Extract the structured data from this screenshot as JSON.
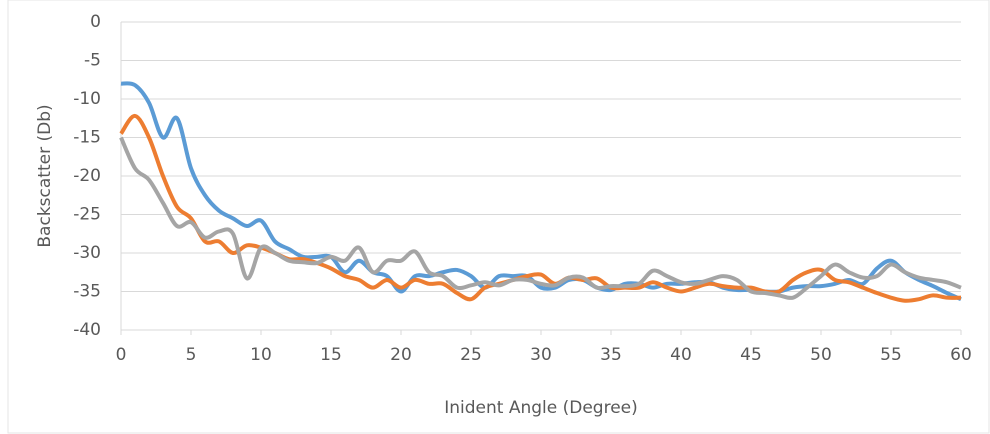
{
  "chart_data": {
    "type": "line",
    "xlabel": "Inident Angle (Degree)",
    "ylabel": "Backscatter (Db)",
    "x": [
      0,
      1,
      2,
      3,
      4,
      5,
      6,
      7,
      8,
      9,
      10,
      11,
      12,
      13,
      14,
      15,
      16,
      17,
      18,
      19,
      20,
      21,
      22,
      23,
      24,
      25,
      26,
      27,
      28,
      29,
      30,
      31,
      32,
      33,
      34,
      35,
      36,
      37,
      38,
      39,
      40,
      41,
      42,
      43,
      44,
      45,
      46,
      47,
      48,
      49,
      50,
      51,
      52,
      53,
      54,
      55,
      56,
      57,
      58,
      59,
      60
    ],
    "series": [
      {
        "color": "#5b9bd5",
        "values": [
          -8,
          -8.2,
          -10.5,
          -15,
          -12.5,
          -19,
          -22.5,
          -24.5,
          -25.5,
          -26.5,
          -25.8,
          -28.5,
          -29.5,
          -30.5,
          -30.5,
          -30.5,
          -32.5,
          -31,
          -32.5,
          -33,
          -35,
          -33,
          -33,
          -32.5,
          -32.2,
          -33,
          -34.5,
          -33,
          -33,
          -33,
          -34.5,
          -34.5,
          -33.5,
          -33.5,
          -34.5,
          -34.8,
          -34,
          -34,
          -34.5,
          -34,
          -34,
          -33.8,
          -33.8,
          -34.5,
          -34.8,
          -34.8,
          -35,
          -35,
          -34.5,
          -34.3,
          -34.3,
          -34,
          -33.5,
          -34,
          -32,
          -31,
          -32.5,
          -33.5,
          -34.3,
          -35.2,
          -36
        ]
      },
      {
        "color": "#ed7d31",
        "values": [
          -14.5,
          -12.2,
          -15,
          -20,
          -24,
          -25.5,
          -28.5,
          -28.5,
          -30,
          -29,
          -29.3,
          -30,
          -30.8,
          -30.8,
          -31.3,
          -32,
          -33,
          -33.5,
          -34.5,
          -33.5,
          -34.5,
          -33.5,
          -34,
          -34,
          -35.2,
          -36,
          -34.5,
          -34,
          -33.5,
          -33,
          -32.8,
          -34,
          -33.2,
          -33.5,
          -33.3,
          -34.5,
          -34.5,
          -34.5,
          -33.8,
          -34.5,
          -35,
          -34.5,
          -34,
          -34.3,
          -34.5,
          -34.5,
          -35,
          -35,
          -33.5,
          -32.5,
          -32.2,
          -33.5,
          -33.8,
          -34.5,
          -35.2,
          -35.8,
          -36.2,
          -36,
          -35.5,
          -35.8,
          -35.8
        ]
      },
      {
        "color": "#a5a5a5",
        "values": [
          -15,
          -19,
          -20.5,
          -23.5,
          -26.5,
          -26,
          -28,
          -27.2,
          -27.5,
          -33.3,
          -29.3,
          -30,
          -31,
          -31.2,
          -31.3,
          -30.5,
          -31,
          -29.3,
          -32.5,
          -31,
          -31,
          -29.8,
          -32.5,
          -33,
          -34.5,
          -34.2,
          -33.8,
          -34.2,
          -33.5,
          -33.5,
          -34,
          -34.2,
          -33.2,
          -33.2,
          -34.5,
          -34.3,
          -34.3,
          -34,
          -32.3,
          -33,
          -33.8,
          -34,
          -33.5,
          -33,
          -33.5,
          -35,
          -35.2,
          -35.5,
          -35.8,
          -34.5,
          -33,
          -31.5,
          -32.5,
          -33.2,
          -33,
          -31.5,
          -32.5,
          -33.2,
          -33.5,
          -33.8,
          -34.5
        ]
      }
    ],
    "xlim": [
      0,
      60
    ],
    "xticks": [
      0,
      5,
      10,
      15,
      20,
      25,
      30,
      35,
      40,
      45,
      50,
      55,
      60
    ],
    "ylim": [
      -40,
      0
    ],
    "yticks": [
      -40,
      -35,
      -30,
      -25,
      -20,
      -15,
      -10,
      -5,
      0
    ],
    "grid": true
  }
}
